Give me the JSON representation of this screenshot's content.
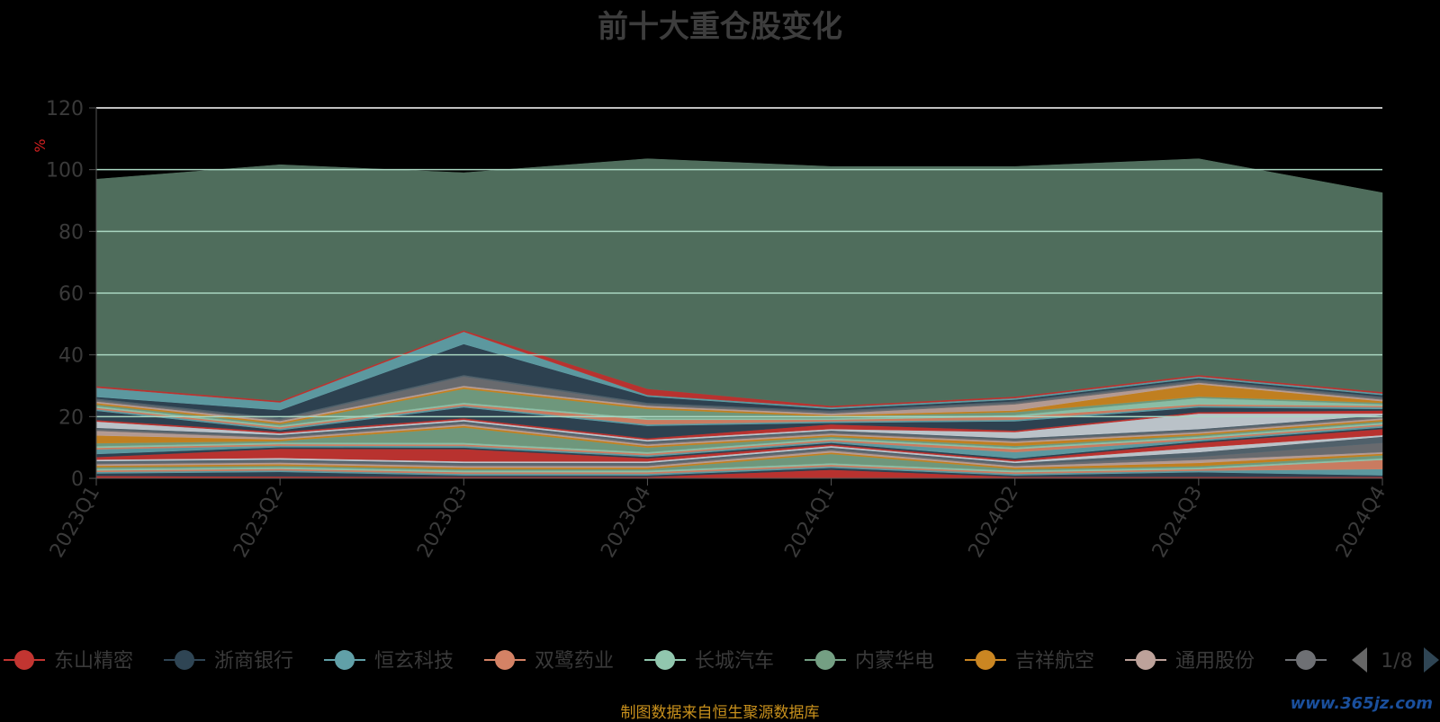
{
  "chart_data": {
    "type": "area",
    "stacked": true,
    "title": "前十大重仓股变化",
    "ylabel": "%",
    "ylim": [
      0,
      120
    ],
    "yticks": [
      0,
      20,
      40,
      60,
      80,
      100,
      120
    ],
    "grid": true,
    "categories": [
      "2023Q1",
      "2023Q2",
      "2023Q3",
      "2023Q4",
      "2024Q1",
      "2024Q2",
      "2024Q3",
      "2024Q4"
    ],
    "series": [
      {
        "name": "东山精密",
        "color": "#c23531",
        "values": [
          0.8,
          0.6,
          0.5,
          0.5,
          2.8,
          0.5,
          0.5,
          0.5
        ]
      },
      {
        "name": "浙商银行",
        "color": "#2f4554",
        "values": [
          0.8,
          1.5,
          0.5,
          0.5,
          0.6,
          0.5,
          1.5,
          0.5
        ]
      },
      {
        "name": "恒玄科技",
        "color": "#61a0a8",
        "values": [
          0.5,
          0.5,
          0.5,
          0.5,
          0.5,
          0.5,
          0.5,
          2.0
        ]
      },
      {
        "name": "双鹭药业",
        "color": "#d48265",
        "values": [
          0.5,
          0.5,
          0.5,
          0.5,
          0.5,
          0.5,
          0.5,
          3.0
        ]
      },
      {
        "name": "长城汽车",
        "color": "#91c7ae",
        "values": [
          0.5,
          0.5,
          0.5,
          0.5,
          0.5,
          0.5,
          0.5,
          0.5
        ]
      },
      {
        "name": "内蒙华电",
        "color": "#749f83",
        "values": [
          0.5,
          0.5,
          0.5,
          0.5,
          3.0,
          0.5,
          0.5,
          1.0
        ]
      },
      {
        "name": "吉祥航空",
        "color": "#ca8622",
        "values": [
          0.5,
          0.5,
          0.5,
          0.5,
          0.5,
          0.5,
          1.0,
          0.5
        ]
      },
      {
        "name": "通用股份",
        "color": "#bda29a",
        "values": [
          0.5,
          0.5,
          0.5,
          0.5,
          0.6,
          0.5,
          1.0,
          0.5
        ]
      },
      {
        "name": "",
        "color": "#6e7074",
        "values": [
          0.5,
          0.5,
          0.5,
          0.5,
          0.5,
          0.5,
          1.0,
          3.0
        ]
      },
      {
        "name": "",
        "color": "#546570",
        "values": [
          0.5,
          0.5,
          0.5,
          0.5,
          0.5,
          0.5,
          1.5,
          2.0
        ]
      },
      {
        "name": "",
        "color": "#c4ccd3",
        "values": [
          0.5,
          0.5,
          0.5,
          0.5,
          0.5,
          0.5,
          1.5,
          0.5
        ]
      },
      {
        "name": "",
        "color": "#c23531",
        "values": [
          0.8,
          3.0,
          4.0,
          1.0,
          0.5,
          0.5,
          1.5,
          2.0
        ]
      },
      {
        "name": "",
        "color": "#2f4554",
        "values": [
          1.0,
          0.5,
          0.5,
          0.5,
          0.5,
          0.5,
          0.5,
          0.5
        ]
      },
      {
        "name": "",
        "color": "#61a0a8",
        "values": [
          1.5,
          0.5,
          0.5,
          0.5,
          0.5,
          2.0,
          0.5,
          0.5
        ]
      },
      {
        "name": "",
        "color": "#d48265",
        "values": [
          0.5,
          0.5,
          0.5,
          0.5,
          0.5,
          1.0,
          0.5,
          0.5
        ]
      },
      {
        "name": "",
        "color": "#91c7ae",
        "values": [
          0.5,
          0.5,
          0.5,
          0.5,
          0.5,
          0.5,
          0.5,
          0.5
        ]
      },
      {
        "name": "",
        "color": "#749f83",
        "values": [
          1.0,
          0.5,
          5.0,
          1.5,
          0.5,
          0.5,
          0.5,
          0.5
        ]
      },
      {
        "name": "",
        "color": "#ca8622",
        "values": [
          2.5,
          0.5,
          0.5,
          0.5,
          0.5,
          1.0,
          0.5,
          0.5
        ]
      },
      {
        "name": "",
        "color": "#bda29a",
        "values": [
          1.5,
          0.5,
          0.5,
          0.5,
          0.5,
          0.5,
          0.5,
          0.5
        ]
      },
      {
        "name": "",
        "color": "#6e7074",
        "values": [
          0.5,
          0.5,
          0.5,
          0.5,
          0.5,
          0.5,
          0.5,
          0.5
        ]
      },
      {
        "name": "",
        "color": "#546570",
        "values": [
          0.5,
          0.5,
          0.5,
          0.5,
          0.5,
          0.5,
          0.5,
          0.5
        ]
      },
      {
        "name": "",
        "color": "#c4ccd3",
        "values": [
          2.0,
          0.5,
          0.5,
          0.5,
          0.5,
          2.0,
          5.0,
          0.5
        ]
      },
      {
        "name": "",
        "color": "#c23531",
        "values": [
          0.5,
          0.5,
          0.5,
          0.5,
          1.5,
          0.5,
          0.5,
          1.0
        ]
      },
      {
        "name": "",
        "color": "#2f4554",
        "values": [
          3.0,
          0.5,
          3.5,
          4.0,
          0.5,
          3.0,
          1.5,
          0.5
        ]
      },
      {
        "name": "",
        "color": "#61a0a8",
        "values": [
          0.5,
          0.5,
          0.5,
          0.5,
          0.5,
          0.5,
          0.5,
          0.5
        ]
      },
      {
        "name": "",
        "color": "#d48265",
        "values": [
          0.5,
          0.5,
          0.5,
          1.5,
          0.5,
          1.0,
          0.5,
          0.5
        ]
      },
      {
        "name": "",
        "color": "#91c7ae",
        "values": [
          0.5,
          0.5,
          0.5,
          0.5,
          0.5,
          0.5,
          2.0,
          0.5
        ]
      },
      {
        "name": "",
        "color": "#749f83",
        "values": [
          0.5,
          0.5,
          4.5,
          3.0,
          0.5,
          1.0,
          0.5,
          0.5
        ]
      },
      {
        "name": "",
        "color": "#ca8622",
        "values": [
          0.5,
          0.5,
          0.5,
          0.5,
          0.5,
          0.5,
          4.0,
          0.5
        ]
      },
      {
        "name": "",
        "color": "#bda29a",
        "values": [
          0.5,
          0.5,
          0.5,
          0.5,
          0.5,
          2.0,
          0.5,
          0.5
        ]
      },
      {
        "name": "",
        "color": "#6e7074",
        "values": [
          0.5,
          0.5,
          3.0,
          0.5,
          0.5,
          0.5,
          0.5,
          0.5
        ]
      },
      {
        "name": "",
        "color": "#546570",
        "values": [
          0.5,
          0.5,
          0.5,
          0.5,
          0.5,
          0.5,
          0.5,
          0.5
        ]
      },
      {
        "name": "",
        "color": "#2f4554",
        "values": [
          0.5,
          2.5,
          10.0,
          2.0,
          0.5,
          0.5,
          0.5,
          0.5
        ]
      },
      {
        "name": "",
        "color": "#61a0a8",
        "values": [
          3.0,
          2.5,
          4.0,
          0.5,
          0.5,
          0.5,
          0.5,
          0.5
        ]
      },
      {
        "name": "",
        "color": "#c23531",
        "values": [
          0.5,
          0.5,
          0.5,
          2.0,
          0.5,
          0.5,
          0.5,
          0.5
        ]
      },
      {
        "name": "",
        "color": "#537361",
        "values": [
          67.0,
          76.5,
          51.0,
          74.5,
          77.5,
          74.5,
          70.0,
          64.5
        ]
      }
    ]
  },
  "legend": {
    "items": [
      {
        "label": "东山精密",
        "color": "#c23531"
      },
      {
        "label": "浙商银行",
        "color": "#2f4554"
      },
      {
        "label": "恒玄科技",
        "color": "#61a0a8"
      },
      {
        "label": "双鹭药业",
        "color": "#d48265"
      },
      {
        "label": "长城汽车",
        "color": "#91c7ae"
      },
      {
        "label": "内蒙华电",
        "color": "#749f83"
      },
      {
        "label": "吉祥航空",
        "color": "#ca8622"
      },
      {
        "label": "通用股份",
        "color": "#bda29a"
      },
      {
        "label": "",
        "color": "#6e7074"
      }
    ],
    "page": "1/8"
  },
  "footer": {
    "source_note": "制图数据来自恒生聚源数据库"
  },
  "watermark": "www.365jz.com"
}
